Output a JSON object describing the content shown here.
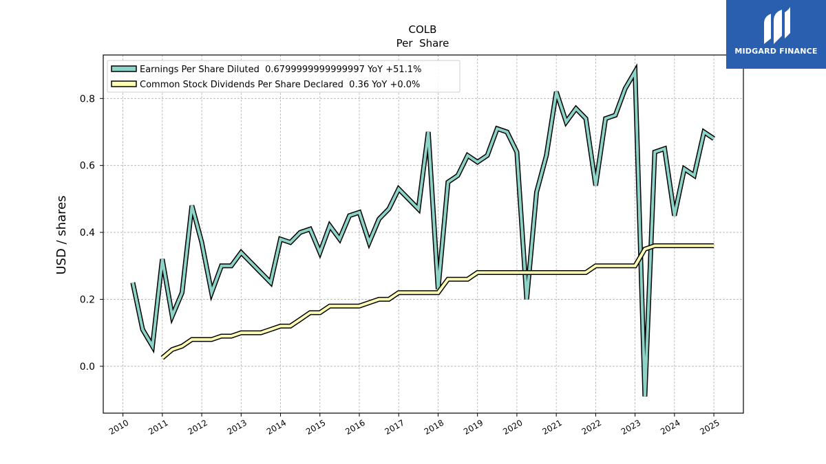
{
  "chart_data": {
    "type": "line",
    "title": "COLB",
    "subtitle": "Per  Share",
    "ylabel": "USD / shares",
    "xlabel": "",
    "xlim": [
      2009.5,
      2025.75
    ],
    "ylim": [
      -0.14,
      0.93
    ],
    "x_ticks": [
      2010,
      2011,
      2012,
      2013,
      2014,
      2015,
      2016,
      2017,
      2018,
      2019,
      2020,
      2021,
      2022,
      2023,
      2024,
      2025
    ],
    "x_tick_labels": [
      "2010",
      "2011",
      "2012",
      "2013",
      "2014",
      "2015",
      "2016",
      "2017",
      "2018",
      "2019",
      "2020",
      "2021",
      "2022",
      "2023",
      "2024",
      "2025"
    ],
    "y_ticks": [
      0.0,
      0.2,
      0.4,
      0.6,
      0.8
    ],
    "y_tick_labels": [
      "0.0",
      "0.2",
      "0.4",
      "0.6",
      "0.8"
    ],
    "grid": true,
    "legend_position": "top-left",
    "series": [
      {
        "name": "Earnings Per Share Diluted  0.6799999999999997 YoY +51.1%",
        "color": "#8dd3c7",
        "x": [
          2010.25,
          2010.5,
          2010.75,
          2011.0,
          2011.25,
          2011.5,
          2011.75,
          2012.0,
          2012.25,
          2012.5,
          2012.75,
          2013.0,
          2013.25,
          2013.5,
          2013.75,
          2014.0,
          2014.25,
          2014.5,
          2014.75,
          2015.0,
          2015.25,
          2015.5,
          2015.75,
          2016.0,
          2016.25,
          2016.5,
          2016.75,
          2017.0,
          2017.25,
          2017.5,
          2017.75,
          2018.0,
          2018.25,
          2018.5,
          2018.75,
          2019.0,
          2019.25,
          2019.5,
          2019.75,
          2020.0,
          2020.25,
          2020.5,
          2020.75,
          2021.0,
          2021.25,
          2021.5,
          2021.75,
          2022.0,
          2022.25,
          2022.5,
          2022.75,
          2023.0,
          2023.25,
          2023.5,
          2023.75,
          2024.0,
          2024.25,
          2024.5,
          2024.75,
          2025.0
        ],
        "values": [
          0.25,
          0.11,
          0.06,
          0.32,
          0.15,
          0.22,
          0.48,
          0.37,
          0.22,
          0.3,
          0.3,
          0.34,
          0.31,
          0.28,
          0.25,
          0.38,
          0.37,
          0.4,
          0.41,
          0.34,
          0.42,
          0.38,
          0.45,
          0.46,
          0.37,
          0.44,
          0.47,
          0.53,
          0.5,
          0.47,
          0.7,
          0.23,
          0.55,
          0.57,
          0.63,
          0.61,
          0.63,
          0.71,
          0.7,
          0.64,
          0.2,
          0.52,
          0.63,
          0.82,
          0.73,
          0.77,
          0.74,
          0.54,
          0.74,
          0.75,
          0.83,
          0.88,
          -0.09,
          0.64,
          0.65,
          0.45,
          0.59,
          0.57,
          0.7,
          0.68
        ]
      },
      {
        "name": "Common Stock Dividends Per Share Declared  0.36 YoY +0.0%",
        "color": "#ffffb3",
        "x": [
          2011.0,
          2011.25,
          2011.5,
          2011.75,
          2012.0,
          2012.25,
          2012.5,
          2012.75,
          2013.0,
          2013.25,
          2013.5,
          2013.75,
          2014.0,
          2014.25,
          2014.5,
          2014.75,
          2015.0,
          2015.25,
          2015.5,
          2015.75,
          2016.0,
          2016.25,
          2016.5,
          2016.75,
          2017.0,
          2017.25,
          2017.5,
          2017.75,
          2018.0,
          2018.25,
          2018.5,
          2018.75,
          2019.0,
          2019.25,
          2019.5,
          2019.75,
          2020.0,
          2020.25,
          2020.5,
          2020.75,
          2021.0,
          2021.25,
          2021.5,
          2021.75,
          2022.0,
          2022.25,
          2022.5,
          2022.75,
          2023.0,
          2023.25,
          2023.5,
          2023.75,
          2024.0,
          2024.25,
          2024.5,
          2024.75,
          2025.0
        ],
        "values": [
          0.025,
          0.05,
          0.06,
          0.08,
          0.08,
          0.08,
          0.09,
          0.09,
          0.1,
          0.1,
          0.1,
          0.11,
          0.12,
          0.12,
          0.14,
          0.16,
          0.16,
          0.18,
          0.18,
          0.18,
          0.18,
          0.19,
          0.2,
          0.2,
          0.22,
          0.22,
          0.22,
          0.22,
          0.22,
          0.26,
          0.26,
          0.26,
          0.28,
          0.28,
          0.28,
          0.28,
          0.28,
          0.28,
          0.28,
          0.28,
          0.28,
          0.28,
          0.28,
          0.28,
          0.3,
          0.3,
          0.3,
          0.3,
          0.3,
          0.35,
          0.36,
          0.36,
          0.36,
          0.36,
          0.36,
          0.36,
          0.36
        ]
      }
    ]
  },
  "logo": {
    "text": "MIDGARD FINANCE",
    "bg_color": "#2a5fb0"
  }
}
